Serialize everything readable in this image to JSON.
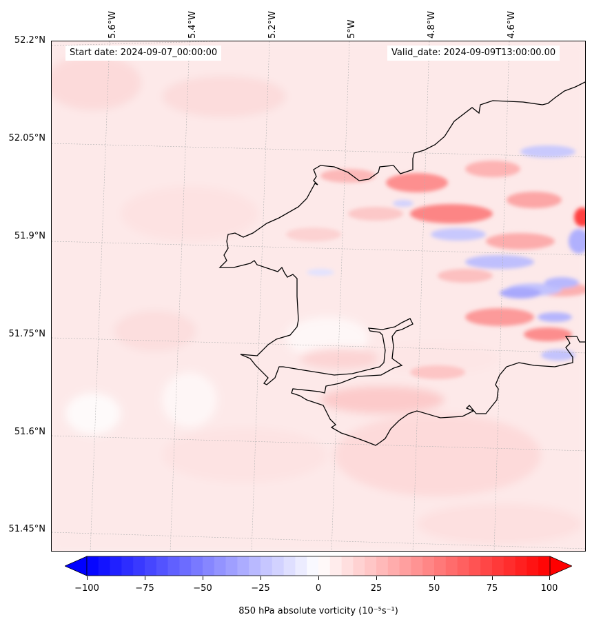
{
  "map": {
    "start_date": "Start date: 2024-09-07_00:00:00",
    "valid_date": "Valid_date: 2024-09-09T13:00:00.00",
    "lat_labels": [
      "52.2°N",
      "52.05°N",
      "51.9°N",
      "51.75°N",
      "51.6°N",
      "51.45°N"
    ],
    "lon_labels": [
      "5.6°W",
      "5.4°W",
      "5.2°W",
      "5°W",
      "4.8°W",
      "4.6°W"
    ],
    "coastline_color": "#000000",
    "grid_color": "#b0b0b0",
    "field_color_positive": "#ff0000",
    "field_color_negative": "#0000ff",
    "background_tint": "#fdeeee"
  },
  "colorbar": {
    "label": "850 hPa absolute vorticity (10⁻⁵s⁻¹)",
    "ticks": [
      "−100",
      "−75",
      "−50",
      "−25",
      "0",
      "25",
      "50",
      "75",
      "100"
    ],
    "min": -100,
    "max": 100,
    "colormap": "bwr",
    "extend": "both"
  }
}
